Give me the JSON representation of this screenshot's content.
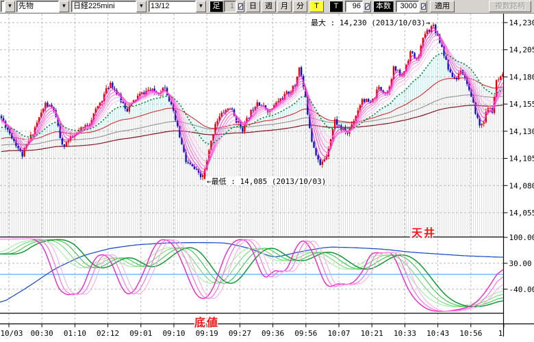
{
  "toolbar": {
    "combo_empty": "",
    "instrument_type": "先物",
    "symbol": "日経225mini",
    "contract_month": "13/12",
    "ashi_label": "足",
    "ashi_value": "1",
    "period_buttons": [
      "日",
      "週",
      "月",
      "分"
    ],
    "tick_toggle": "T",
    "tick_label": "T",
    "tick_value": "96",
    "bars_label": "本数",
    "bars_value": "3000",
    "apply_button": "適用",
    "multi_symbol_button": "複数銘柄"
  },
  "main_chart": {
    "price_tick_labels": [
      "14,230",
      "14,205",
      "14,180",
      "14,155",
      "14,130",
      "14,105",
      "14,080",
      "14,055"
    ],
    "price_tick_values": [
      14230,
      14205,
      14180,
      14155,
      14130,
      14105,
      14080,
      14055
    ],
    "max_annotation": "最大 : 14,230 (2013/10/03)→",
    "min_annotation": "←最低 : 14,085 (2013/10/03)"
  },
  "oscillator": {
    "tick_labels": [
      "100.00",
      "30.00",
      "-40.00"
    ],
    "tick_values": [
      100,
      30,
      -40
    ],
    "ceiling_label": "天井",
    "bottom_label": "底値"
  },
  "x_axis_labels": [
    "10/03",
    "00:30",
    "01:10",
    "02:12",
    "09:01",
    "09:10",
    "09:19",
    "09:27",
    "09:36",
    "09:56",
    "10:07",
    "10:21",
    "10:33",
    "10:43",
    "10:56",
    "1"
  ],
  "chart_data": {
    "type": "candlestick_with_oscillator",
    "date": "2013/10/03",
    "session_high": 14230,
    "session_low": 14085,
    "visible_bars": 240,
    "price_range_shown": [
      14055,
      14230
    ],
    "price_anchors": [
      [
        0,
        14142
      ],
      [
        10,
        14108
      ],
      [
        21,
        14155
      ],
      [
        25,
        14150
      ],
      [
        29,
        14116
      ],
      [
        36,
        14128
      ],
      [
        42,
        14138
      ],
      [
        48,
        14160
      ],
      [
        52,
        14175
      ],
      [
        57,
        14158
      ],
      [
        60,
        14150
      ],
      [
        65,
        14162
      ],
      [
        70,
        14168
      ],
      [
        75,
        14165
      ],
      [
        78,
        14172
      ],
      [
        83,
        14140
      ],
      [
        88,
        14102
      ],
      [
        92,
        14095
      ],
      [
        96,
        14085
      ],
      [
        100,
        14120
      ],
      [
        102,
        14138
      ],
      [
        106,
        14148
      ],
      [
        109,
        14152
      ],
      [
        112,
        14140
      ],
      [
        115,
        14132
      ],
      [
        119,
        14148
      ],
      [
        122,
        14158
      ],
      [
        125,
        14152
      ],
      [
        128,
        14148
      ],
      [
        132,
        14158
      ],
      [
        137,
        14166
      ],
      [
        140,
        14172
      ],
      [
        142,
        14190
      ],
      [
        145,
        14160
      ],
      [
        148,
        14122
      ],
      [
        152,
        14098
      ],
      [
        155,
        14108
      ],
      [
        159,
        14140
      ],
      [
        162,
        14132
      ],
      [
        165,
        14128
      ],
      [
        169,
        14145
      ],
      [
        172,
        14160
      ],
      [
        176,
        14155
      ],
      [
        180,
        14170
      ],
      [
        184,
        14165
      ],
      [
        187,
        14188
      ],
      [
        191,
        14180
      ],
      [
        195,
        14203
      ],
      [
        198,
        14195
      ],
      [
        202,
        14220
      ],
      [
        206,
        14228
      ],
      [
        210,
        14208
      ],
      [
        214,
        14182
      ],
      [
        217,
        14178
      ],
      [
        219,
        14188
      ],
      [
        222,
        14175
      ],
      [
        224,
        14160
      ],
      [
        226,
        14148
      ],
      [
        228,
        14135
      ],
      [
        230,
        14140
      ],
      [
        232,
        14152
      ],
      [
        234,
        14148
      ],
      [
        236,
        14175
      ],
      [
        239,
        14180
      ]
    ],
    "oscillator_anchors": {
      "pink": [
        [
          0,
          95
        ],
        [
          55,
          96
        ],
        [
          70,
          55
        ],
        [
          80,
          -20
        ],
        [
          92,
          -62
        ],
        [
          100,
          -48
        ],
        [
          106,
          -58
        ],
        [
          112,
          -50
        ],
        [
          118,
          -58
        ],
        [
          126,
          -18
        ],
        [
          135,
          45
        ],
        [
          146,
          52
        ],
        [
          156,
          58
        ],
        [
          163,
          38
        ],
        [
          172,
          -15
        ],
        [
          182,
          -55
        ],
        [
          190,
          -62
        ],
        [
          198,
          -40
        ],
        [
          207,
          -10
        ],
        [
          218,
          45
        ],
        [
          228,
          92
        ],
        [
          240,
          96
        ],
        [
          252,
          88
        ],
        [
          262,
          50
        ],
        [
          272,
          8
        ],
        [
          282,
          -45
        ],
        [
          292,
          -72
        ],
        [
          300,
          -65
        ],
        [
          308,
          -58
        ],
        [
          316,
          -18
        ],
        [
          324,
          32
        ],
        [
          334,
          75
        ],
        [
          344,
          95
        ],
        [
          356,
          96
        ],
        [
          366,
          85
        ],
        [
          374,
          45
        ],
        [
          382,
          -12
        ],
        [
          390,
          -22
        ],
        [
          396,
          4
        ],
        [
          402,
          28
        ],
        [
          408,
          12
        ],
        [
          414,
          -14
        ],
        [
          420,
          12
        ],
        [
          428,
          55
        ],
        [
          436,
          95
        ],
        [
          444,
          96
        ],
        [
          452,
          82
        ],
        [
          460,
          45
        ],
        [
          468,
          5
        ],
        [
          476,
          -38
        ],
        [
          482,
          -48
        ],
        [
          488,
          -25
        ],
        [
          494,
          -12
        ],
        [
          500,
          -28
        ],
        [
          506,
          -42
        ],
        [
          512,
          -22
        ],
        [
          518,
          -8
        ],
        [
          524,
          -25
        ],
        [
          530,
          8
        ],
        [
          538,
          48
        ],
        [
          545,
          72
        ],
        [
          551,
          60
        ],
        [
          557,
          45
        ],
        [
          563,
          60
        ],
        [
          569,
          72
        ],
        [
          575,
          55
        ],
        [
          581,
          28
        ],
        [
          588,
          -8
        ],
        [
          596,
          -42
        ],
        [
          604,
          -65
        ],
        [
          614,
          -82
        ],
        [
          624,
          -95
        ],
        [
          634,
          -100
        ],
        [
          648,
          -100
        ],
        [
          662,
          -98
        ],
        [
          676,
          -92
        ],
        [
          690,
          -85
        ],
        [
          702,
          -65
        ],
        [
          712,
          -40
        ],
        [
          722,
          -12
        ],
        [
          730,
          15
        ],
        [
          735,
          22
        ]
      ],
      "green": [
        [
          0,
          55
        ],
        [
          25,
          85
        ],
        [
          50,
          95
        ],
        [
          70,
          92
        ],
        [
          85,
          72
        ],
        [
          100,
          35
        ],
        [
          112,
          18
        ],
        [
          124,
          15
        ],
        [
          136,
          28
        ],
        [
          148,
          42
        ],
        [
          160,
          48
        ],
        [
          172,
          38
        ],
        [
          184,
          22
        ],
        [
          196,
          18
        ],
        [
          208,
          30
        ],
        [
          220,
          48
        ],
        [
          232,
          65
        ],
        [
          244,
          74
        ],
        [
          256,
          72
        ],
        [
          268,
          50
        ],
        [
          280,
          18
        ],
        [
          292,
          -12
        ],
        [
          304,
          -28
        ],
        [
          316,
          -22
        ],
        [
          328,
          5
        ],
        [
          340,
          38
        ],
        [
          352,
          62
        ],
        [
          364,
          74
        ],
        [
          376,
          68
        ],
        [
          388,
          50
        ],
        [
          400,
          38
        ],
        [
          412,
          35
        ],
        [
          424,
          42
        ],
        [
          436,
          55
        ],
        [
          448,
          62
        ],
        [
          460,
          58
        ],
        [
          472,
          45
        ],
        [
          484,
          28
        ],
        [
          496,
          15
        ],
        [
          508,
          12
        ],
        [
          520,
          20
        ],
        [
          532,
          35
        ],
        [
          544,
          48
        ],
        [
          556,
          55
        ],
        [
          568,
          50
        ],
        [
          580,
          35
        ],
        [
          592,
          10
        ],
        [
          604,
          -20
        ],
        [
          616,
          -48
        ],
        [
          628,
          -68
        ],
        [
          640,
          -80
        ],
        [
          652,
          -86
        ],
        [
          664,
          -88
        ],
        [
          676,
          -86
        ],
        [
          688,
          -80
        ],
        [
          700,
          -72
        ],
        [
          712,
          -62
        ],
        [
          724,
          -50
        ],
        [
          735,
          -42
        ]
      ],
      "blue": [
        [
          0,
          -80
        ],
        [
          40,
          -35
        ],
        [
          80,
          15
        ],
        [
          120,
          50
        ],
        [
          160,
          70
        ],
        [
          200,
          80
        ],
        [
          245,
          85
        ],
        [
          290,
          86
        ],
        [
          330,
          85
        ],
        [
          365,
          70
        ],
        [
          400,
          45
        ],
        [
          440,
          62
        ],
        [
          480,
          74
        ],
        [
          520,
          72
        ],
        [
          560,
          68
        ],
        [
          600,
          60
        ],
        [
          640,
          55
        ],
        [
          680,
          50
        ],
        [
          710,
          48
        ],
        [
          735,
          46
        ]
      ],
      "zero_line_value": 0
    },
    "colors": {
      "candle_up": "#e60000",
      "candle_down": "#0014cc",
      "ma_ribbon": [
        "#ff1ec8",
        "#ff3ed0",
        "#ff60d8",
        "#ff82e0",
        "#ffa4ea",
        "#ffc0f0"
      ],
      "ma_green_dotted": "#008830",
      "ma_red": "#d42a2a",
      "ma_maroon": "#7c1622",
      "ma_gray": "#909090",
      "hatch_gray": "#dadada",
      "hatch_cyan": "#aeeded",
      "grid": "#b8b8b8",
      "osc_pinks": [
        "#ee22cc",
        "#ff66dd",
        "#ffaaea"
      ],
      "osc_greens": [
        "#a4eca4",
        "#74da74",
        "#3cc44c",
        "#0f9932"
      ],
      "osc_blue": "#2050c8",
      "osc_zero_line": "#58aaff",
      "annotation_red": "#ff1111"
    }
  }
}
